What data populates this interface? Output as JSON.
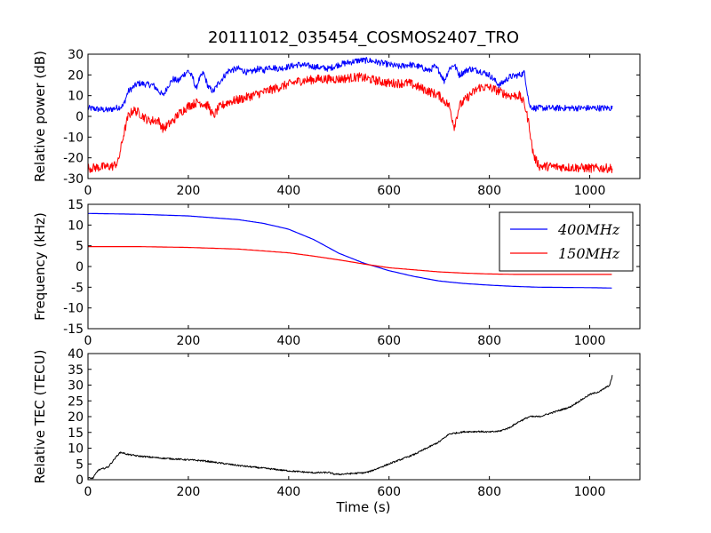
{
  "figure": {
    "title": "20111012_035454_COSMOS2407_TRO",
    "xlabel": "Time (s)"
  },
  "chart_data": [
    {
      "type": "line",
      "ylabel": "Relative power (dB)",
      "xlim": [
        0,
        1100
      ],
      "ylim": [
        -30,
        30
      ],
      "xticks": [
        0,
        200,
        400,
        600,
        800,
        1000
      ],
      "yticks": [
        -30,
        -20,
        -10,
        0,
        10,
        20,
        30
      ],
      "legend": null,
      "series": [
        {
          "color": "#0000ff",
          "noise": 1.5,
          "x": [
            0,
            40,
            70,
            80,
            100,
            130,
            150,
            160,
            170,
            180,
            190,
            200,
            210,
            215,
            220,
            230,
            240,
            250,
            260,
            280,
            300,
            320,
            340,
            350,
            360,
            380,
            400,
            420,
            450,
            480,
            500,
            520,
            540,
            560,
            580,
            600,
            620,
            640,
            660,
            680,
            690,
            700,
            710,
            720,
            730,
            740,
            760,
            780,
            800,
            820,
            840,
            860,
            870,
            880,
            890,
            900,
            1000,
            1045
          ],
          "y": [
            4,
            3,
            5,
            12,
            16,
            15,
            10,
            15,
            18,
            17,
            20,
            22,
            18,
            13,
            17,
            21,
            14,
            12,
            16,
            22,
            23,
            21,
            23,
            22,
            24,
            23,
            24,
            25,
            24,
            23,
            25,
            26,
            27,
            27,
            26,
            25,
            24,
            25,
            24,
            22,
            24,
            22,
            17,
            23,
            25,
            20,
            23,
            22,
            20,
            15,
            19,
            20,
            21,
            5,
            4,
            4,
            4,
            4
          ]
        },
        {
          "color": "#ff0000",
          "noise": 2.2,
          "x": [
            0,
            50,
            60,
            70,
            80,
            90,
            100,
            120,
            140,
            150,
            160,
            170,
            180,
            200,
            220,
            240,
            250,
            260,
            280,
            300,
            340,
            380,
            420,
            460,
            500,
            540,
            560,
            580,
            600,
            620,
            640,
            660,
            680,
            700,
            720,
            730,
            740,
            760,
            780,
            800,
            820,
            840,
            860,
            870,
            880,
            885,
            890,
            900,
            1000,
            1045
          ],
          "y": [
            -25,
            -24,
            -22,
            -10,
            0,
            3,
            2,
            -2,
            -2,
            -6,
            -4,
            -2,
            1,
            5,
            7,
            5,
            0,
            4,
            7,
            8,
            11,
            14,
            17,
            18,
            18,
            19,
            18,
            17,
            16,
            16,
            16,
            14,
            12,
            10,
            5,
            -5,
            5,
            10,
            14,
            14,
            12,
            10,
            10,
            6,
            -5,
            -15,
            -20,
            -24,
            -25,
            -25
          ]
        }
      ]
    },
    {
      "type": "line",
      "ylabel": "Frequency (kHz)",
      "xlim": [
        0,
        1100
      ],
      "ylim": [
        -15,
        15
      ],
      "xticks": [
        0,
        200,
        400,
        600,
        800,
        1000
      ],
      "yticks": [
        -15,
        -10,
        -5,
        0,
        5,
        10,
        15
      ],
      "legend": "top-right",
      "series": [
        {
          "name": "400MHz",
          "color": "#0000ff",
          "noise": 0,
          "x": [
            0,
            100,
            200,
            300,
            350,
            400,
            450,
            500,
            550,
            600,
            650,
            700,
            750,
            800,
            850,
            900,
            1000,
            1045
          ],
          "y": [
            12.8,
            12.6,
            12.2,
            11.3,
            10.4,
            9.0,
            6.5,
            3.2,
            0.8,
            -1.0,
            -2.4,
            -3.5,
            -4.1,
            -4.5,
            -4.8,
            -5.0,
            -5.1,
            -5.2
          ]
        },
        {
          "name": "150MHz",
          "color": "#ff0000",
          "noise": 0,
          "x": [
            0,
            100,
            200,
            300,
            400,
            450,
            500,
            550,
            600,
            650,
            700,
            750,
            800,
            850,
            900,
            1000,
            1045
          ],
          "y": [
            4.8,
            4.8,
            4.6,
            4.2,
            3.3,
            2.5,
            1.6,
            0.6,
            -0.3,
            -0.8,
            -1.3,
            -1.6,
            -1.8,
            -1.9,
            -1.9,
            -1.9,
            -1.9
          ]
        }
      ]
    },
    {
      "type": "line",
      "ylabel": "Relative TEC (TECU)",
      "xlim": [
        0,
        1100
      ],
      "ylim": [
        0,
        40
      ],
      "xticks": [
        0,
        200,
        400,
        600,
        800,
        1000
      ],
      "yticks": [
        0,
        5,
        10,
        15,
        20,
        25,
        30,
        35,
        40
      ],
      "legend": null,
      "series": [
        {
          "color": "#000000",
          "noise": 0.25,
          "x": [
            0,
            10,
            20,
            40,
            60,
            65,
            80,
            100,
            150,
            200,
            230,
            300,
            400,
            450,
            480,
            490,
            500,
            550,
            560,
            600,
            650,
            700,
            720,
            750,
            780,
            800,
            820,
            840,
            860,
            880,
            900,
            920,
            940,
            960,
            980,
            1000,
            1020,
            1040,
            1045
          ],
          "y": [
            0.5,
            0.5,
            3,
            4,
            8,
            8.7,
            8,
            7.5,
            6.8,
            6.3,
            6,
            4.5,
            2.8,
            2.2,
            2.3,
            1.8,
            1.7,
            2.2,
            2.5,
            5,
            8,
            12,
            14.5,
            15.2,
            15.3,
            15.1,
            15.4,
            16.5,
            18.5,
            20,
            20,
            21,
            22,
            23,
            25,
            27,
            28,
            30,
            33
          ]
        }
      ]
    }
  ]
}
